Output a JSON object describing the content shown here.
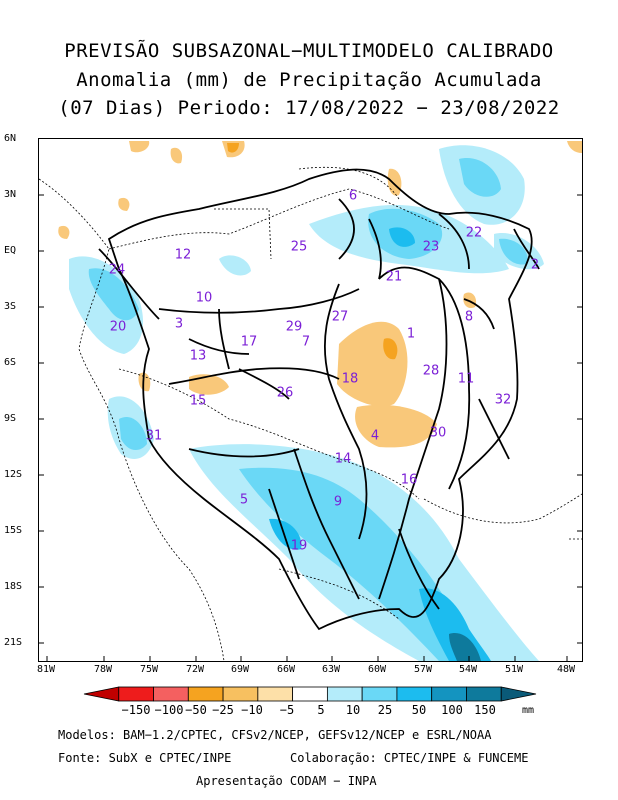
{
  "title": {
    "line1": "PREVISÃO SUBSAZONAL−MULTIMODELO CALIBRADO",
    "line2": "Anomalia (mm) de Precipitação Acumulada",
    "line3": "(07 Dias) Periodo: 17/08/2022 − 23/08/2022"
  },
  "axes": {
    "lat_labels": [
      "6N",
      "3N",
      "EQ",
      "3S",
      "6S",
      "9S",
      "12S",
      "15S",
      "18S",
      "21S"
    ],
    "lon_labels": [
      "81W",
      "78W",
      "75W",
      "72W",
      "69W",
      "66W",
      "63W",
      "60W",
      "57W",
      "54W",
      "51W",
      "48W"
    ]
  },
  "basins": [
    {
      "id": "1"
    },
    {
      "id": "2"
    },
    {
      "id": "3"
    },
    {
      "id": "4"
    },
    {
      "id": "5"
    },
    {
      "id": "6"
    },
    {
      "id": "7"
    },
    {
      "id": "8"
    },
    {
      "id": "9"
    },
    {
      "id": "10"
    },
    {
      "id": "11"
    },
    {
      "id": "12"
    },
    {
      "id": "13"
    },
    {
      "id": "14"
    },
    {
      "id": "15"
    },
    {
      "id": "16"
    },
    {
      "id": "17"
    },
    {
      "id": "18"
    },
    {
      "id": "19"
    },
    {
      "id": "20"
    },
    {
      "id": "21"
    },
    {
      "id": "22"
    },
    {
      "id": "23"
    },
    {
      "id": "24"
    },
    {
      "id": "25"
    },
    {
      "id": "26"
    },
    {
      "id": "27"
    },
    {
      "id": "28"
    },
    {
      "id": "29"
    },
    {
      "id": "30"
    },
    {
      "id": "31"
    },
    {
      "id": "32"
    }
  ],
  "colorbar": {
    "ticks": [
      "−150",
      "−100",
      "−50",
      "−25",
      "−10",
      "−5",
      "5",
      "10",
      "25",
      "50",
      "100",
      "150"
    ],
    "unit": "mm",
    "colors": [
      "#c00000",
      "#ee1c1c",
      "#f46060",
      "#f5a320",
      "#f7c060",
      "#fde0a8",
      "#ffffff",
      "#b4ecfa",
      "#6ad8f6",
      "#1cbcef",
      "#1494c0",
      "#0e7a9c",
      "#0a5a78"
    ]
  },
  "footer": {
    "models": "Modelos: BAM−1.2/CPTEC, CFSv2/NCEP, GEFSv12/NCEP e ESRL/NOAA",
    "source": "Fonte: SubX e CPTEC/INPE",
    "collab": "Colaboração: CPTEC/INPE & FUNCEME",
    "presentation": "Apresentação CODAM − INPA"
  }
}
